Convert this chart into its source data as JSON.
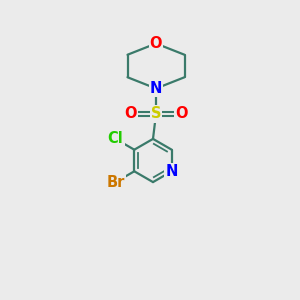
{
  "bg_color": "#ebebeb",
  "bond_color": "#3a7a6a",
  "atom_colors": {
    "O": "#ff0000",
    "N": "#0000ff",
    "S": "#cccc00",
    "Cl": "#22cc00",
    "Br": "#cc7700"
  },
  "font_size": 10.5,
  "figsize": [
    3.0,
    3.0
  ],
  "dpi": 100
}
